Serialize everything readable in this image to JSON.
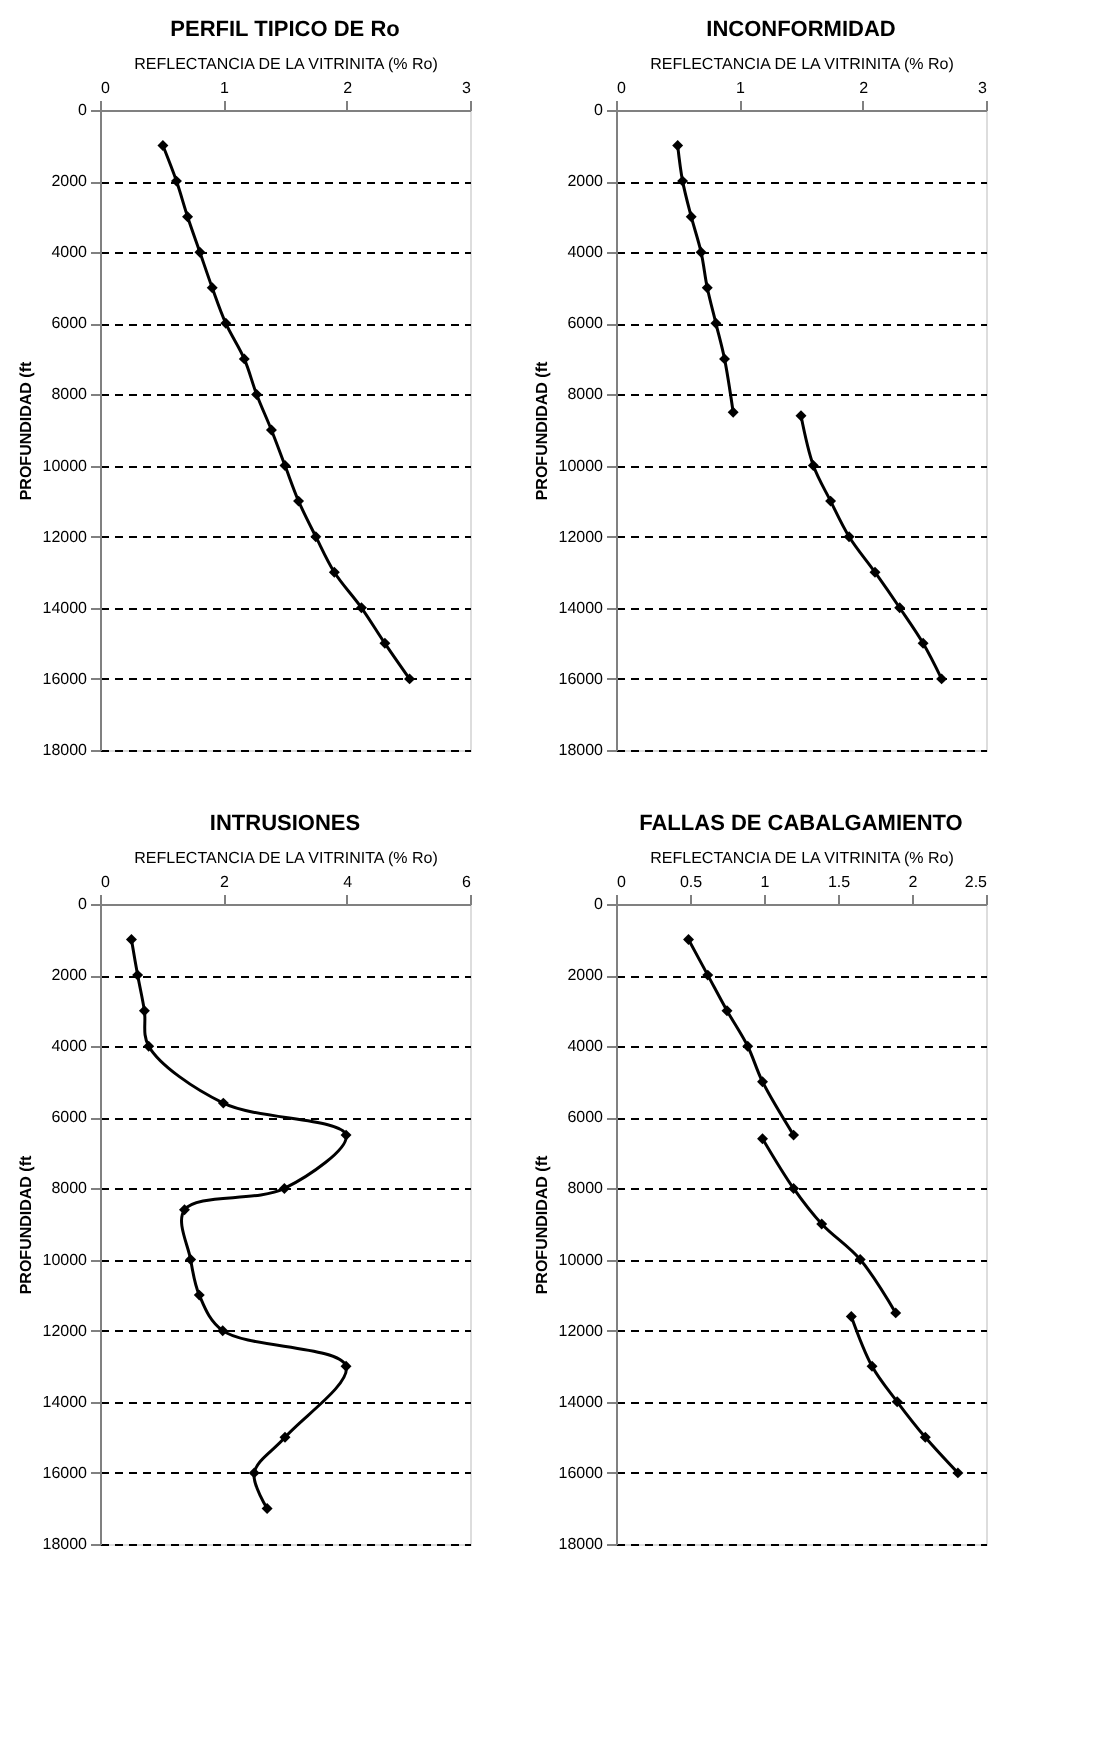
{
  "chart_data": [
    {
      "type": "line",
      "title": "PERFIL TIPICO DE Ro",
      "xlabel": "REFLECTANCIA DE LA VITRINITA (% Ro)",
      "ylabel": "PROFUNDIDAD (ft",
      "xlim": [
        0,
        3
      ],
      "xticks": [
        0,
        1,
        2,
        3
      ],
      "ylim": [
        18000,
        0
      ],
      "yticks": [
        0,
        2000,
        4000,
        6000,
        8000,
        10000,
        12000,
        14000,
        16000,
        18000
      ],
      "grid": "y",
      "marker": "diamond",
      "line_style": "solid",
      "series": [
        {
          "color": "#000000",
          "x": [
            0.51,
            0.62,
            0.71,
            0.81,
            0.91,
            1.02,
            1.17,
            1.27,
            1.39,
            1.5,
            1.61,
            1.75,
            1.9,
            2.12,
            2.31,
            2.51
          ],
          "values": [
            1000,
            2000,
            3000,
            4000,
            5000,
            6000,
            7000,
            8000,
            9000,
            10000,
            11000,
            12000,
            13000,
            14000,
            15000,
            16000
          ]
        }
      ]
    },
    {
      "type": "line",
      "title": "INCONFORMIDAD",
      "xlabel": "REFLECTANCIA DE LA VITRINITA (% Ro)",
      "ylabel": "PROFUNDIDAD (ft",
      "xlim": [
        0,
        3
      ],
      "xticks": [
        0,
        1,
        2,
        3
      ],
      "ylim": [
        18000,
        0
      ],
      "yticks": [
        0,
        2000,
        4000,
        6000,
        8000,
        10000,
        12000,
        14000,
        16000,
        18000
      ],
      "grid": "y",
      "marker": "diamond",
      "line_style": "solid",
      "series": [
        {
          "color": "#000000",
          "x": [
            0.5,
            0.54,
            0.61,
            0.69,
            0.74,
            0.81,
            0.88,
            0.95
          ],
          "values": [
            1000,
            2000,
            3000,
            4000,
            5000,
            6000,
            7000,
            8500
          ]
        },
        {
          "color": "#000000",
          "x": [
            1.5,
            1.6,
            1.74,
            1.89,
            2.1,
            2.3,
            2.49,
            2.64
          ],
          "values": [
            8600,
            10000,
            11000,
            12000,
            13000,
            14000,
            15000,
            16000
          ]
        }
      ]
    },
    {
      "type": "line",
      "title": "INTRUSIONES",
      "xlabel": "REFLECTANCIA DE LA VITRINITA (% Ro)",
      "ylabel": "PROFUNDIDAD (ft",
      "xlim": [
        0,
        6
      ],
      "xticks": [
        0,
        2,
        4,
        6
      ],
      "ylim": [
        18000,
        0
      ],
      "yticks": [
        0,
        2000,
        4000,
        6000,
        8000,
        10000,
        12000,
        14000,
        16000,
        18000
      ],
      "grid": "y",
      "marker": "diamond",
      "line_style": "solid",
      "series": [
        {
          "color": "#000000",
          "x": [
            0.51,
            0.61,
            0.72,
            0.79,
            2.0,
            3.99,
            2.99,
            1.37,
            1.47,
            1.61,
            1.99,
            3.99,
            3.0,
            2.5,
            2.71
          ],
          "values": [
            1000,
            2000,
            3000,
            4000,
            5600,
            6500,
            8000,
            8600,
            10000,
            11000,
            12000,
            13000,
            15000,
            16000,
            17000
          ]
        }
      ]
    },
    {
      "type": "line",
      "title": "FALLAS DE CABALGAMIENTO",
      "xlabel": "REFLECTANCIA DE LA VITRINITA (% Ro)",
      "ylabel": "PROFUNDIDAD (ft",
      "xlim": [
        0,
        2.5
      ],
      "xticks": [
        0,
        0.5,
        1,
        1.5,
        2,
        2.5
      ],
      "ylim": [
        18000,
        0
      ],
      "yticks": [
        0,
        2000,
        4000,
        6000,
        8000,
        10000,
        12000,
        14000,
        16000,
        18000
      ],
      "grid": "y",
      "marker": "diamond",
      "line_style": "solid",
      "series": [
        {
          "color": "#000000",
          "x": [
            0.49,
            0.62,
            0.75,
            0.89,
            0.99,
            1.2
          ],
          "values": [
            1000,
            2000,
            3000,
            4000,
            5000,
            6500
          ]
        },
        {
          "color": "#000000",
          "x": [
            0.99,
            1.2,
            1.39,
            1.65,
            1.89
          ],
          "values": [
            6600,
            8000,
            9000,
            10000,
            11500
          ]
        },
        {
          "color": "#000000",
          "x": [
            1.59,
            1.73,
            1.9,
            2.09,
            2.31
          ],
          "values": [
            11600,
            13000,
            14000,
            15000,
            16000
          ]
        }
      ]
    }
  ]
}
